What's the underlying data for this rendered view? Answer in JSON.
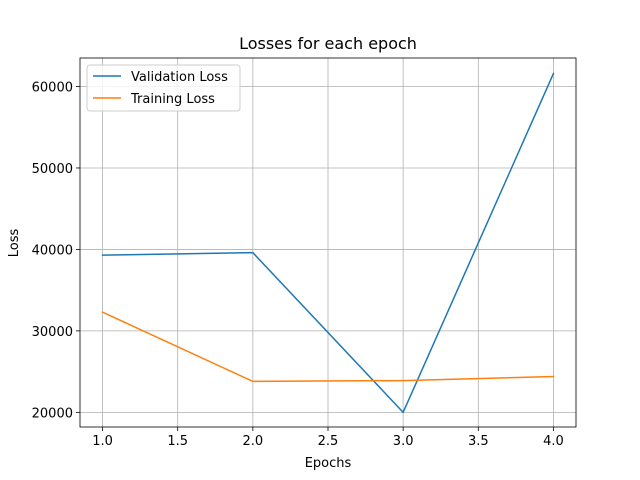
{
  "chart_data": {
    "type": "line",
    "title": "Losses for each epoch",
    "xlabel": "Epochs",
    "ylabel": "Loss",
    "xlim": [
      0.85,
      4.15
    ],
    "ylim": [
      18200,
      63500
    ],
    "xticks": [
      1.0,
      1.5,
      2.0,
      2.5,
      3.0,
      3.5,
      4.0
    ],
    "xtick_labels": [
      "1.0",
      "1.5",
      "2.0",
      "2.5",
      "3.0",
      "3.5",
      "4.0"
    ],
    "yticks": [
      20000,
      30000,
      40000,
      50000,
      60000
    ],
    "ytick_labels": [
      "20000",
      "30000",
      "40000",
      "50000",
      "60000"
    ],
    "grid": true,
    "legend_position": "top-left",
    "x": [
      1,
      2,
      3,
      4
    ],
    "series": [
      {
        "name": "Validation Loss",
        "color": "#1f77b4",
        "values": [
          39300,
          39600,
          20000,
          61600
        ]
      },
      {
        "name": "Training Loss",
        "color": "#ff7f0e",
        "values": [
          32300,
          23800,
          23900,
          24400
        ]
      }
    ]
  }
}
